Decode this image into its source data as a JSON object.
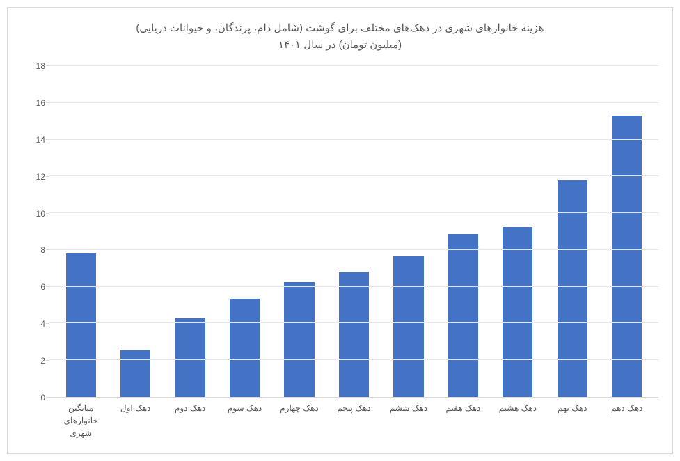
{
  "chart": {
    "type": "bar",
    "title_line1": "هزینه خانوارهای شهری در دهک‌های مختلف برای گوشت (شامل دام، پرندگان، و حیوانات دریایی)",
    "title_line2": "(میلیون تومان) در سال ۱۴۰۱",
    "title_fontsize": 15,
    "title_color": "#595959",
    "categories": [
      "میانگین خانوارهای شهری",
      "دهک اول",
      "دهک دوم",
      "دهک سوم",
      "دهک چهارم",
      "دهک پنجم",
      "دهک ششم",
      "دهک هفتم",
      "دهک هشتم",
      "دهک نهم",
      "دهک دهم"
    ],
    "values": [
      7.8,
      2.55,
      4.3,
      5.35,
      6.25,
      6.8,
      7.65,
      8.85,
      9.25,
      11.8,
      15.3
    ],
    "bar_color": "#4472c4",
    "bar_width": 0.55,
    "ylim": [
      0,
      18
    ],
    "ytick_step": 2,
    "yticks": [
      0,
      2,
      4,
      6,
      8,
      10,
      12,
      14,
      16,
      18
    ],
    "grid_color": "#e6e6e6",
    "border_color": "#d9d9d9",
    "background_color": "#ffffff",
    "label_fontsize": 12,
    "label_color": "#595959"
  }
}
